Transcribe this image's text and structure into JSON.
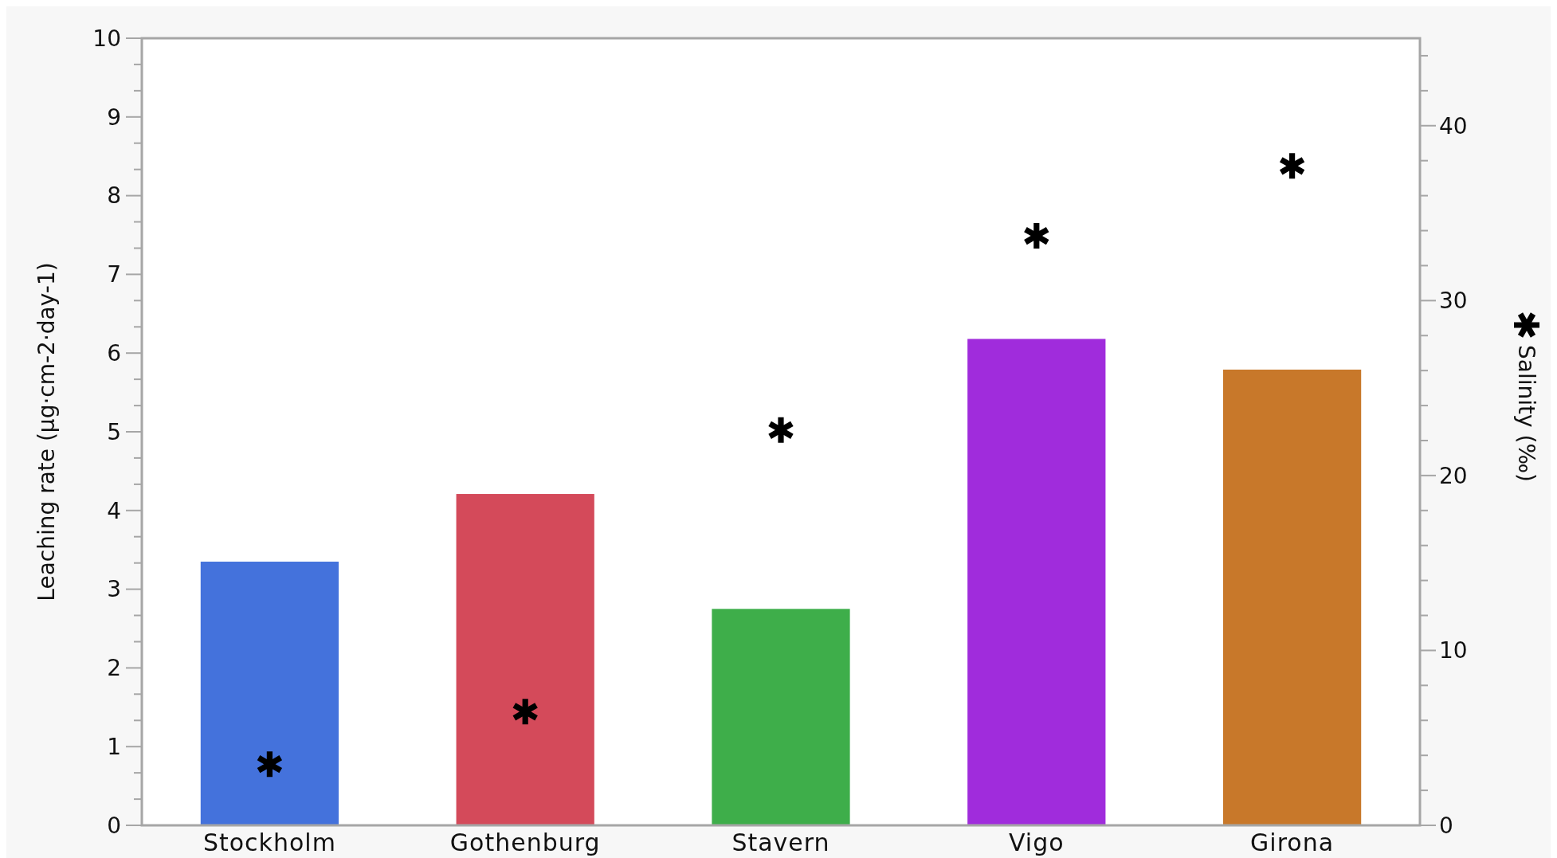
{
  "chart_data": {
    "type": "bar",
    "ylabel": "Leaching rate (µg·cm-2·day-1)",
    "y2label": "Salinity (‰)",
    "categories": [
      "Stockholm",
      "Gothenburg",
      "Stavern",
      "Vigo",
      "Girona"
    ],
    "series": [
      {
        "values": [
          3.35,
          4.21,
          2.75,
          6.18,
          5.79
        ],
        "colors": [
          "#4472dc",
          "#d44a5a",
          "#3eae4a",
          "#a02cdc",
          "#c8782a"
        ]
      },
      {
        "type": "scatter",
        "axis": "y2",
        "color": "#000000",
        "marker": "cross",
        "x": [
          "Stockholm",
          "Gothenburg",
          "Stavern",
          "Vigo",
          "Girona"
        ],
        "values": [
          3.5,
          6.5,
          22.6,
          33.7,
          37.7
        ]
      }
    ],
    "ylim": [
      0,
      10
    ],
    "yticks": [
      0,
      {
        "value": 0.333,
        "label": null
      },
      {
        "value": 0.667,
        "label": null
      },
      1,
      {
        "value": 1.333,
        "label": null
      },
      {
        "value": 1.667,
        "label": null
      },
      2,
      {
        "value": 2.333,
        "label": null
      },
      {
        "value": 2.667,
        "label": null
      },
      3,
      {
        "value": 3.333,
        "label": null
      },
      {
        "value": 3.667,
        "label": null
      },
      4,
      {
        "value": 4.333,
        "label": null
      },
      {
        "value": 4.667,
        "label": null
      },
      5,
      {
        "value": 5.333,
        "label": null
      },
      {
        "value": 5.667,
        "label": null
      },
      6,
      {
        "value": 6.333,
        "label": null
      },
      {
        "value": 6.667,
        "label": null
      },
      7,
      {
        "value": 7.333,
        "label": null
      },
      {
        "value": 7.667,
        "label": null
      },
      8,
      {
        "value": 8.333,
        "label": null
      },
      {
        "value": 8.667,
        "label": null
      },
      9,
      {
        "value": 9.333,
        "label": null
      },
      {
        "value": 9.667,
        "label": null
      },
      10
    ],
    "y2lim": [
      0,
      45
    ],
    "y2ticks": [
      0,
      {
        "value": 2,
        "label": null
      },
      {
        "value": 4,
        "label": null
      },
      {
        "value": 6,
        "label": null
      },
      {
        "value": 8,
        "label": null
      },
      10,
      {
        "value": 12,
        "label": null
      },
      {
        "value": 14,
        "label": null
      },
      {
        "value": 16,
        "label": null
      },
      {
        "value": 18,
        "label": null
      },
      20,
      {
        "value": 22,
        "label": null
      },
      {
        "value": 24,
        "label": null
      },
      {
        "value": 26,
        "label": null
      },
      {
        "value": 28,
        "label": null
      },
      30,
      {
        "value": 32,
        "label": null
      },
      {
        "value": 34,
        "label": null
      },
      {
        "value": 36,
        "label": null
      },
      {
        "value": 38,
        "label": null
      },
      40,
      {
        "value": 42,
        "label": null
      },
      {
        "value": 44,
        "label": null
      }
    ],
    "grid": false
  }
}
